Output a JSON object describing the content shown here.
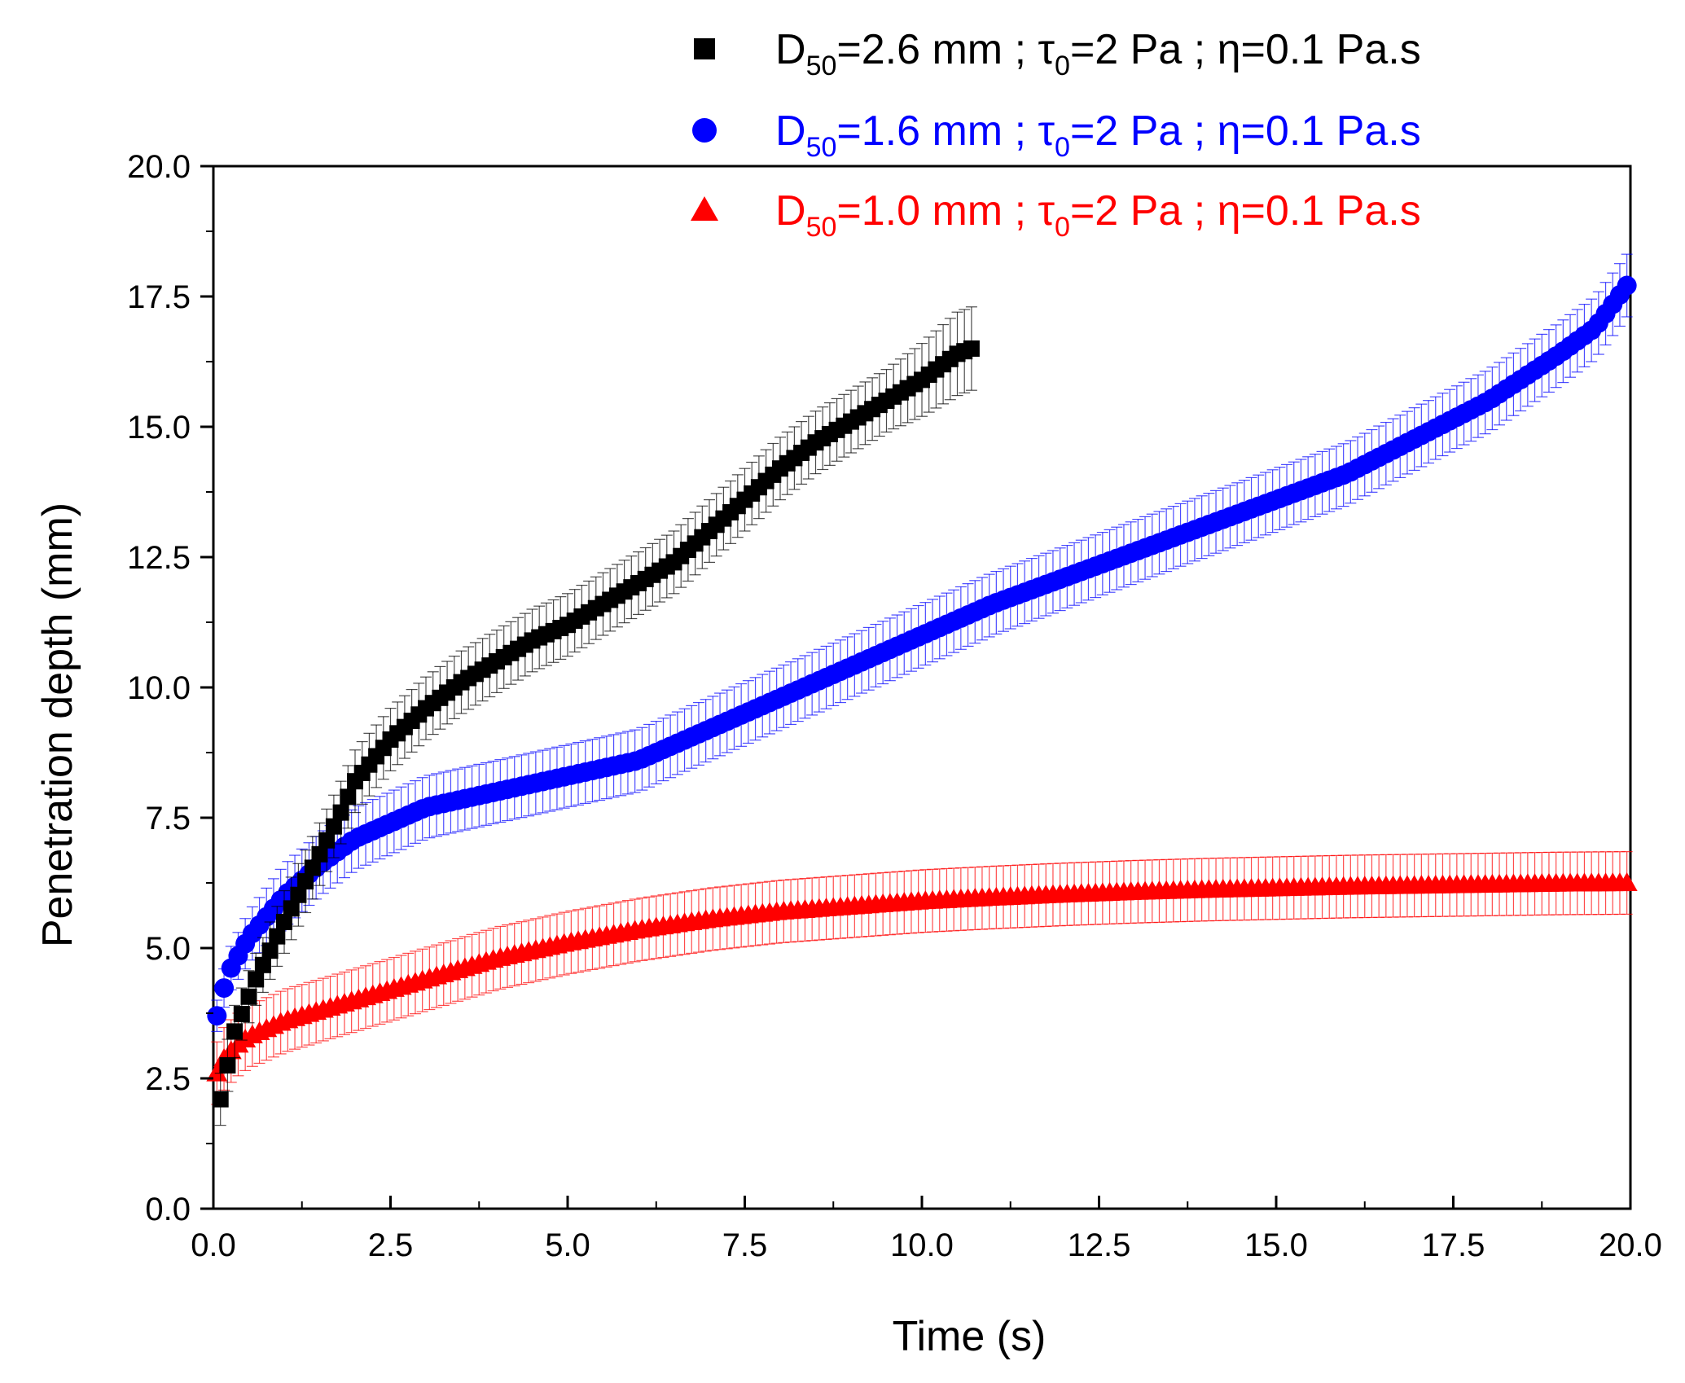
{
  "chart_data": {
    "type": "scatter",
    "title": "",
    "xlabel": "Time (s)",
    "ylabel": "Penetration depth (mm)",
    "xlim": [
      0,
      20
    ],
    "ylim": [
      0,
      20
    ],
    "xticks": [
      "0.0",
      "2.5",
      "5.0",
      "7.5",
      "10.0",
      "12.5",
      "15.0",
      "17.5",
      "20.0"
    ],
    "yticks": [
      "0.0",
      "2.5",
      "5.0",
      "7.5",
      "10.0",
      "12.5",
      "15.0",
      "17.5",
      "20.0"
    ],
    "legend_position": "top-right",
    "series": [
      {
        "name": "D50=2.6 mm ; τ0=2 Pa ; η=0.1 Pa.s",
        "label": {
          "main": "D",
          "sub": "50",
          "mid": "=2.6 mm ; τ",
          "sub2": "0",
          "tail": "=2 Pa ; η=0.1 Pa.s"
        },
        "color": "#000000",
        "marker": "square",
        "x": [
          0.1,
          0.3,
          0.6,
          1.0,
          1.5,
          1.8,
          2.0,
          2.5,
          3.0,
          3.5,
          4.0,
          4.5,
          5.0,
          5.5,
          6.0,
          6.5,
          7.0,
          7.5,
          8.0,
          8.5,
          9.0,
          9.5,
          10.0,
          10.5,
          10.7
        ],
        "y": [
          2.1,
          3.4,
          4.4,
          5.5,
          6.8,
          7.6,
          8.2,
          9.0,
          9.6,
          10.1,
          10.5,
          10.9,
          11.2,
          11.6,
          12.0,
          12.4,
          13.0,
          13.6,
          14.2,
          14.7,
          15.1,
          15.5,
          15.9,
          16.4,
          16.5
        ],
        "error": [
          0.5,
          0.5,
          0.5,
          0.6,
          0.6,
          0.6,
          0.6,
          0.6,
          0.6,
          0.6,
          0.6,
          0.6,
          0.6,
          0.6,
          0.6,
          0.6,
          0.6,
          0.6,
          0.6,
          0.6,
          0.6,
          0.6,
          0.7,
          0.8,
          0.8
        ]
      },
      {
        "name": "D50=1.6 mm ; τ0=2 Pa ; η=0.1 Pa.s",
        "label": {
          "main": "D",
          "sub": "50",
          "mid": "=1.6 mm ; τ",
          "sub2": "0",
          "tail": "=2 Pa ; η=0.1 Pa.s"
        },
        "color": "#0000ff",
        "marker": "circle",
        "x": [
          0.05,
          0.2,
          0.5,
          1.0,
          1.5,
          2.0,
          2.5,
          3.0,
          4.0,
          5.0,
          6.0,
          7.0,
          8.0,
          9.0,
          10.0,
          11.0,
          12.0,
          13.0,
          14.0,
          15.0,
          16.0,
          17.0,
          18.0,
          19.0,
          19.5,
          20.0
        ],
        "y": [
          3.7,
          4.5,
          5.2,
          6.0,
          6.6,
          7.1,
          7.4,
          7.7,
          8.0,
          8.3,
          8.6,
          9.2,
          9.8,
          10.4,
          11.0,
          11.6,
          12.1,
          12.6,
          13.1,
          13.6,
          14.1,
          14.8,
          15.5,
          16.4,
          16.9,
          17.8
        ],
        "error": [
          0.3,
          0.4,
          0.5,
          0.6,
          0.6,
          0.6,
          0.6,
          0.6,
          0.6,
          0.6,
          0.6,
          0.6,
          0.6,
          0.6,
          0.6,
          0.6,
          0.6,
          0.6,
          0.6,
          0.6,
          0.6,
          0.6,
          0.6,
          0.6,
          0.6,
          0.6
        ]
      },
      {
        "name": "D50=1.0 mm ; τ0=2 Pa ; η=0.1 Pa.s",
        "label": {
          "main": "D",
          "sub": "50",
          "mid": "=1.0 mm ; τ",
          "sub2": "0",
          "tail": "=2 Pa ; η=0.1 Pa.s"
        },
        "color": "#ff0000",
        "marker": "triangle",
        "x": [
          0.05,
          0.1,
          0.3,
          0.5,
          1.0,
          1.5,
          2.0,
          3.0,
          4.0,
          5.0,
          6.0,
          7.0,
          8.0,
          9.0,
          10.0,
          11.0,
          12.0,
          13.0,
          14.0,
          15.0,
          16.0,
          17.0,
          18.0,
          19.0,
          20.0
        ],
        "y": [
          2.6,
          2.8,
          3.1,
          3.3,
          3.6,
          3.8,
          4.0,
          4.4,
          4.8,
          5.1,
          5.35,
          5.55,
          5.7,
          5.8,
          5.9,
          5.97,
          6.03,
          6.08,
          6.12,
          6.15,
          6.18,
          6.2,
          6.22,
          6.24,
          6.25
        ],
        "error": [
          0.6,
          0.6,
          0.6,
          0.6,
          0.6,
          0.6,
          0.6,
          0.6,
          0.6,
          0.6,
          0.6,
          0.6,
          0.6,
          0.6,
          0.6,
          0.6,
          0.6,
          0.6,
          0.6,
          0.6,
          0.6,
          0.6,
          0.6,
          0.6,
          0.6
        ]
      }
    ]
  }
}
